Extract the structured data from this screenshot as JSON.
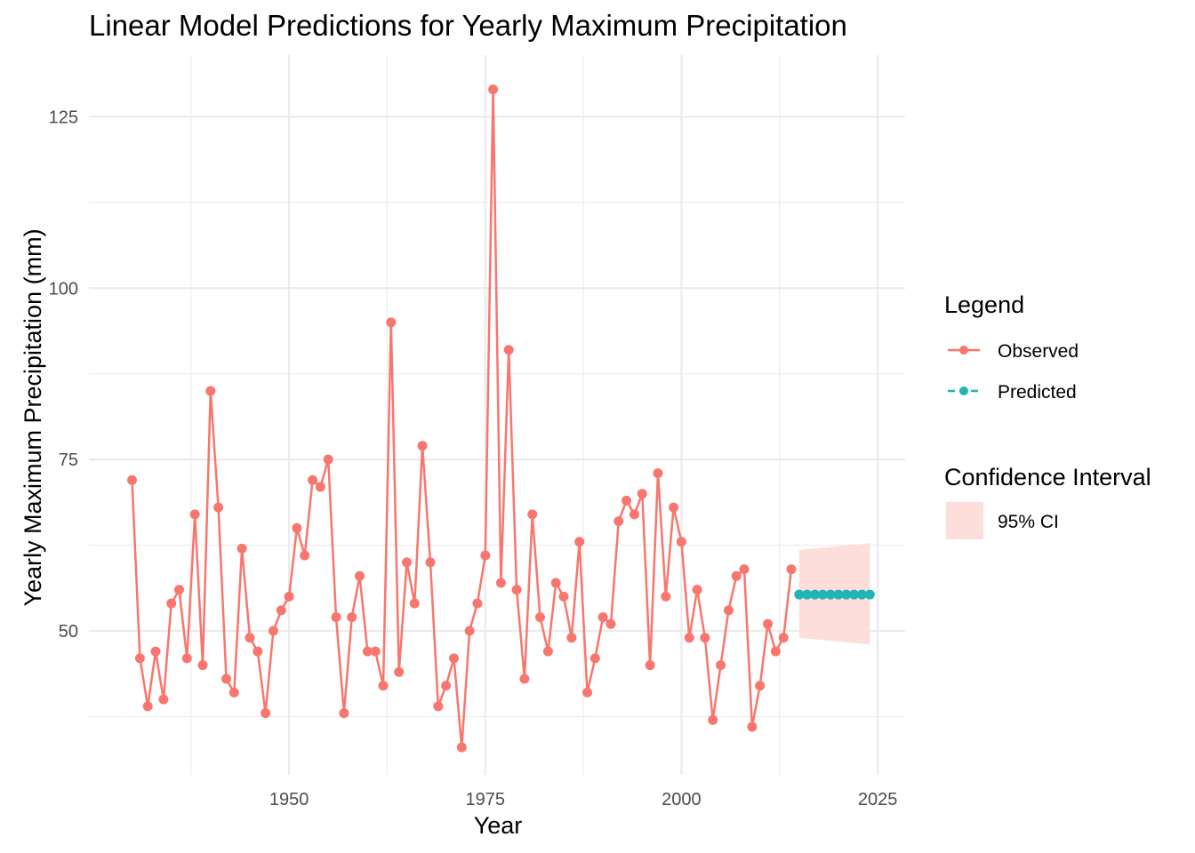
{
  "chart_data": {
    "type": "line",
    "title": "Linear Model Predictions for Yearly Maximum Precipitation",
    "xlabel": "Year",
    "ylabel": "Yearly Maximum Precipitation (mm)",
    "xlim": [
      1924.5,
      2028.5
    ],
    "ylim": [
      29,
      134
    ],
    "x_ticks": [
      1950,
      1975,
      2000,
      2025
    ],
    "y_ticks": [
      50,
      75,
      100,
      125
    ],
    "grid": true,
    "legend_placement": "right",
    "legend": {
      "title": "Legend",
      "ci_title": "Confidence Interval",
      "ci_label": "95% CI"
    },
    "colors": {
      "observed": "#F8766D",
      "predicted": "#1FB5B5",
      "ci_fill": "#FDDEDB",
      "grid": "#EBEBEB"
    },
    "series": [
      {
        "name": "Observed",
        "x": [
          1930,
          1931,
          1932,
          1933,
          1934,
          1935,
          1936,
          1937,
          1938,
          1939,
          1940,
          1941,
          1942,
          1943,
          1944,
          1945,
          1946,
          1947,
          1948,
          1949,
          1950,
          1951,
          1952,
          1953,
          1954,
          1955,
          1956,
          1957,
          1958,
          1959,
          1960,
          1961,
          1962,
          1963,
          1964,
          1965,
          1966,
          1967,
          1968,
          1969,
          1970,
          1971,
          1972,
          1973,
          1974,
          1975,
          1976,
          1977,
          1978,
          1979,
          1980,
          1981,
          1982,
          1983,
          1984,
          1985,
          1986,
          1987,
          1988,
          1989,
          1990,
          1991,
          1992,
          1993,
          1994,
          1995,
          1996,
          1997,
          1998,
          1999,
          2000,
          2001,
          2002,
          2003,
          2004,
          2005,
          2006,
          2007,
          2008,
          2009,
          2010,
          2011,
          2012,
          2013,
          2014
        ],
        "y": [
          72,
          46,
          39,
          47,
          40,
          54,
          56,
          46,
          67,
          45,
          85,
          68,
          43,
          41,
          62,
          49,
          47,
          38,
          50,
          53,
          55,
          65,
          61,
          72,
          71,
          75,
          52,
          38,
          52,
          58,
          47,
          47,
          42,
          95,
          44,
          60,
          54,
          77,
          60,
          39,
          42,
          46,
          33,
          50,
          54,
          61,
          129,
          57,
          91,
          56,
          43,
          67,
          52,
          47,
          57,
          55,
          49,
          63,
          41,
          46,
          52,
          51,
          66,
          69,
          67,
          70,
          45,
          73,
          55,
          68,
          63,
          49,
          56,
          49,
          37,
          45,
          53,
          58,
          59,
          36,
          42,
          51,
          47,
          49,
          59
        ]
      },
      {
        "name": "Predicted",
        "x": [
          2015,
          2016,
          2017,
          2018,
          2019,
          2020,
          2021,
          2022,
          2023,
          2024
        ],
        "y": [
          55.3,
          55.3,
          55.3,
          55.3,
          55.3,
          55.3,
          55.3,
          55.3,
          55.3,
          55.3
        ]
      }
    ],
    "ci": {
      "x": [
        2015,
        2024
      ],
      "lower": [
        49,
        48
      ],
      "upper": [
        61.8,
        62.8
      ]
    }
  }
}
